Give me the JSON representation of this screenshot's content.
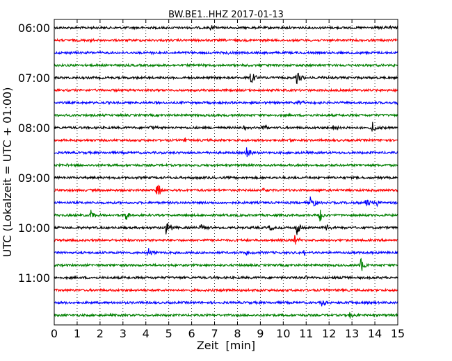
{
  "chart_data": {
    "type": "line",
    "title": "BW.BE1..HHZ 2017-01-13",
    "xlabel": "Zeit  [min]",
    "ylabel": "UTC (Lokalzeit = UTC + 01:00)",
    "xlim": [
      0,
      15
    ],
    "x_ticks": [
      0,
      1,
      2,
      3,
      4,
      5,
      6,
      7,
      8,
      9,
      10,
      11,
      12,
      13,
      14,
      15
    ],
    "grid": "vertical-dotted",
    "trace_interval_min": 15,
    "trace_colors": [
      "#000000",
      "#ff0000",
      "#0000ff",
      "#008000"
    ],
    "hour_labels": [
      {
        "label": "06:00",
        "trace": 0
      },
      {
        "label": "07:00",
        "trace": 4
      },
      {
        "label": "08:00",
        "trace": 8
      },
      {
        "label": "09:00",
        "trace": 12
      },
      {
        "label": "10:00",
        "trace": 16
      },
      {
        "label": "11:00",
        "trace": 20
      }
    ],
    "traces": [
      {
        "start": "06:00",
        "events": [
          [
            6.8,
            0.3
          ],
          [
            14.2,
            0.25
          ],
          [
            14.7,
            0.2
          ]
        ]
      },
      {
        "start": "06:15",
        "events": [
          [
            1.5,
            0.12
          ],
          [
            12.3,
            0.1
          ]
        ]
      },
      {
        "start": "06:30",
        "events": [
          [
            4.0,
            0.25
          ],
          [
            7.5,
            0.18
          ],
          [
            12.5,
            0.22
          ]
        ]
      },
      {
        "start": "06:45",
        "events": [
          [
            8.5,
            0.12
          ],
          [
            14.8,
            0.2
          ]
        ]
      },
      {
        "start": "07:00",
        "events": [
          [
            8.6,
            1.0
          ],
          [
            10.6,
            0.8
          ],
          [
            11.5,
            0.3
          ]
        ]
      },
      {
        "start": "07:15",
        "events": [
          [
            5.0,
            0.12
          ]
        ]
      },
      {
        "start": "07:30",
        "events": [
          [
            10.7,
            0.25
          ],
          [
            15.0,
            0.2
          ]
        ]
      },
      {
        "start": "07:45",
        "events": [
          [
            7.0,
            0.1
          ]
        ]
      },
      {
        "start": "08:00",
        "events": [
          [
            4.2,
            0.3
          ],
          [
            8.3,
            0.25
          ],
          [
            9.1,
            0.4
          ],
          [
            12.2,
            0.3
          ],
          [
            13.9,
            0.7
          ]
        ]
      },
      {
        "start": "08:15",
        "events": [
          [
            5.7,
            0.2
          ],
          [
            10.2,
            0.22
          ]
        ]
      },
      {
        "start": "08:30",
        "events": [
          [
            8.4,
            0.65
          ]
        ]
      },
      {
        "start": "08:45",
        "events": [
          [
            0.5,
            0.15
          ],
          [
            10.0,
            0.1
          ]
        ]
      },
      {
        "start": "09:00",
        "events": [
          [
            6.0,
            0.1
          ]
        ]
      },
      {
        "start": "09:15",
        "events": [
          [
            4.5,
            0.85
          ],
          [
            9.1,
            0.2
          ],
          [
            11.6,
            0.2
          ]
        ]
      },
      {
        "start": "09:30",
        "events": [
          [
            11.2,
            1.0
          ],
          [
            13.6,
            0.8
          ],
          [
            14.1,
            0.3
          ]
        ]
      },
      {
        "start": "09:45",
        "events": [
          [
            1.6,
            0.65
          ],
          [
            3.1,
            0.7
          ],
          [
            11.6,
            0.75
          ]
        ]
      },
      {
        "start": "10:00",
        "events": [
          [
            4.9,
            0.95
          ],
          [
            6.4,
            0.35
          ],
          [
            9.4,
            0.3
          ],
          [
            10.6,
            0.9
          ],
          [
            11.9,
            0.3
          ]
        ]
      },
      {
        "start": "10:15",
        "events": [
          [
            10.5,
            0.65
          ]
        ]
      },
      {
        "start": "10:30",
        "events": [
          [
            4.1,
            0.6
          ],
          [
            8.4,
            0.25
          ],
          [
            10.9,
            0.35
          ]
        ]
      },
      {
        "start": "10:45",
        "events": [
          [
            13.4,
            0.85
          ]
        ]
      },
      {
        "start": "11:00",
        "events": [
          [
            11.0,
            0.25
          ],
          [
            12.6,
            0.25
          ]
        ]
      },
      {
        "start": "11:15",
        "events": [
          [
            7.3,
            0.15
          ],
          [
            8.5,
            0.2
          ],
          [
            12.0,
            0.1
          ]
        ]
      },
      {
        "start": "11:30",
        "events": [
          [
            11.7,
            0.4
          ],
          [
            12.9,
            0.35
          ]
        ]
      },
      {
        "start": "11:45",
        "events": [
          [
            12.9,
            0.35
          ]
        ]
      }
    ]
  }
}
